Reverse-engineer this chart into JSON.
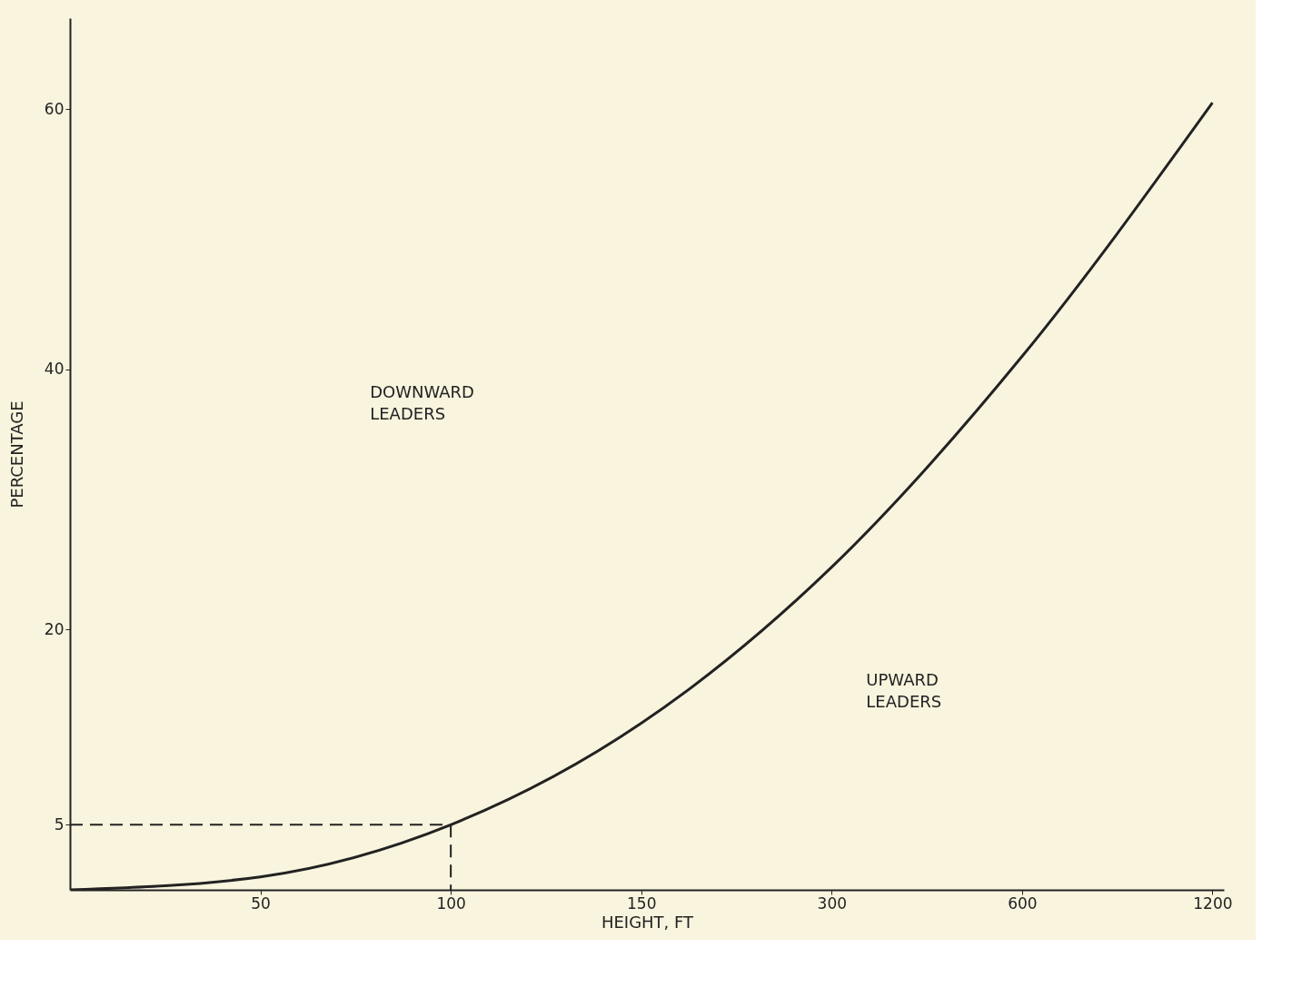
{
  "chart_data": {
    "type": "line",
    "xlabel": "HEIGHT, FT",
    "ylabel": "PERCENTAGE",
    "categories": [
      null,
      "50",
      "100",
      "150",
      "300",
      "600",
      "1200"
    ],
    "ylim": [
      0,
      67
    ],
    "yticks": [
      5,
      20,
      40,
      60
    ],
    "grid": false,
    "series": [
      {
        "color": "#222222",
        "line_style": "solid",
        "values": [
          0,
          1,
          5,
          12.8,
          24.8,
          41,
          60.5
        ]
      },
      {
        "color": "#222222",
        "line_style": "dashed",
        "values": [
          5,
          5,
          5,
          null,
          null,
          null,
          null
        ]
      },
      {
        "color": "#222222",
        "line_style": "dashed",
        "x": [
          "100",
          "100"
        ],
        "values": [
          5,
          0
        ]
      }
    ],
    "annotations": [
      "DOWNWARD LEADERS",
      "UPWARD LEADERS"
    ]
  }
}
